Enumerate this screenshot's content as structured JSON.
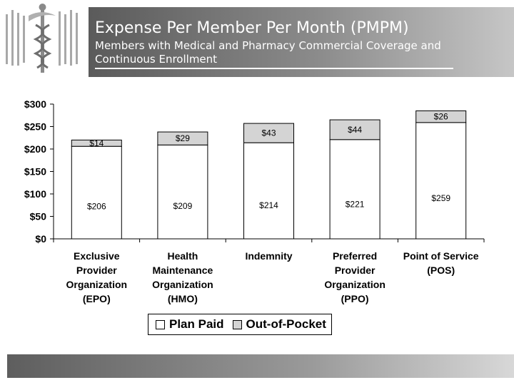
{
  "header": {
    "title": "Expense Per Member Per Month (PMPM)",
    "subtitle": "Members with Medical and Pharmacy Commercial Coverage and Continuous Enrollment"
  },
  "colors": {
    "plan_paid": "#ffffff",
    "out_of_pocket": "#d4d4d4",
    "header_dark": "#5a5a5a",
    "bar_outline": "#000000"
  },
  "chart_data": {
    "type": "bar",
    "stacked": true,
    "categories": [
      [
        "Exclusive",
        "Provider",
        "Organization",
        "(EPO)"
      ],
      [
        "Health",
        "Maintenance",
        "Organization",
        "(HMO)"
      ],
      [
        "Indemnity"
      ],
      [
        "Preferred",
        "Provider",
        "Organization",
        "(PPO)"
      ],
      [
        "Point of Service",
        "(POS)"
      ]
    ],
    "series": [
      {
        "name": "Plan Paid",
        "values": [
          206,
          209,
          214,
          221,
          259
        ],
        "labels": [
          "$206",
          "$209",
          "$214",
          "$221",
          "$259"
        ]
      },
      {
        "name": "Out-of-Pocket",
        "values": [
          14,
          29,
          43,
          44,
          26
        ],
        "labels": [
          "$14",
          "$29",
          "$43",
          "$44",
          "$26"
        ]
      }
    ],
    "ylim": [
      0,
      300
    ],
    "yticks": [
      {
        "value": 0,
        "label": "$0"
      },
      {
        "value": 50,
        "label": "$50"
      },
      {
        "value": 100,
        "label": "$100"
      },
      {
        "value": 150,
        "label": "$150"
      },
      {
        "value": 200,
        "label": "$200"
      },
      {
        "value": 250,
        "label": "$250"
      },
      {
        "value": 300,
        "label": "$300"
      }
    ],
    "grid": false,
    "legend_position": "bottom"
  }
}
